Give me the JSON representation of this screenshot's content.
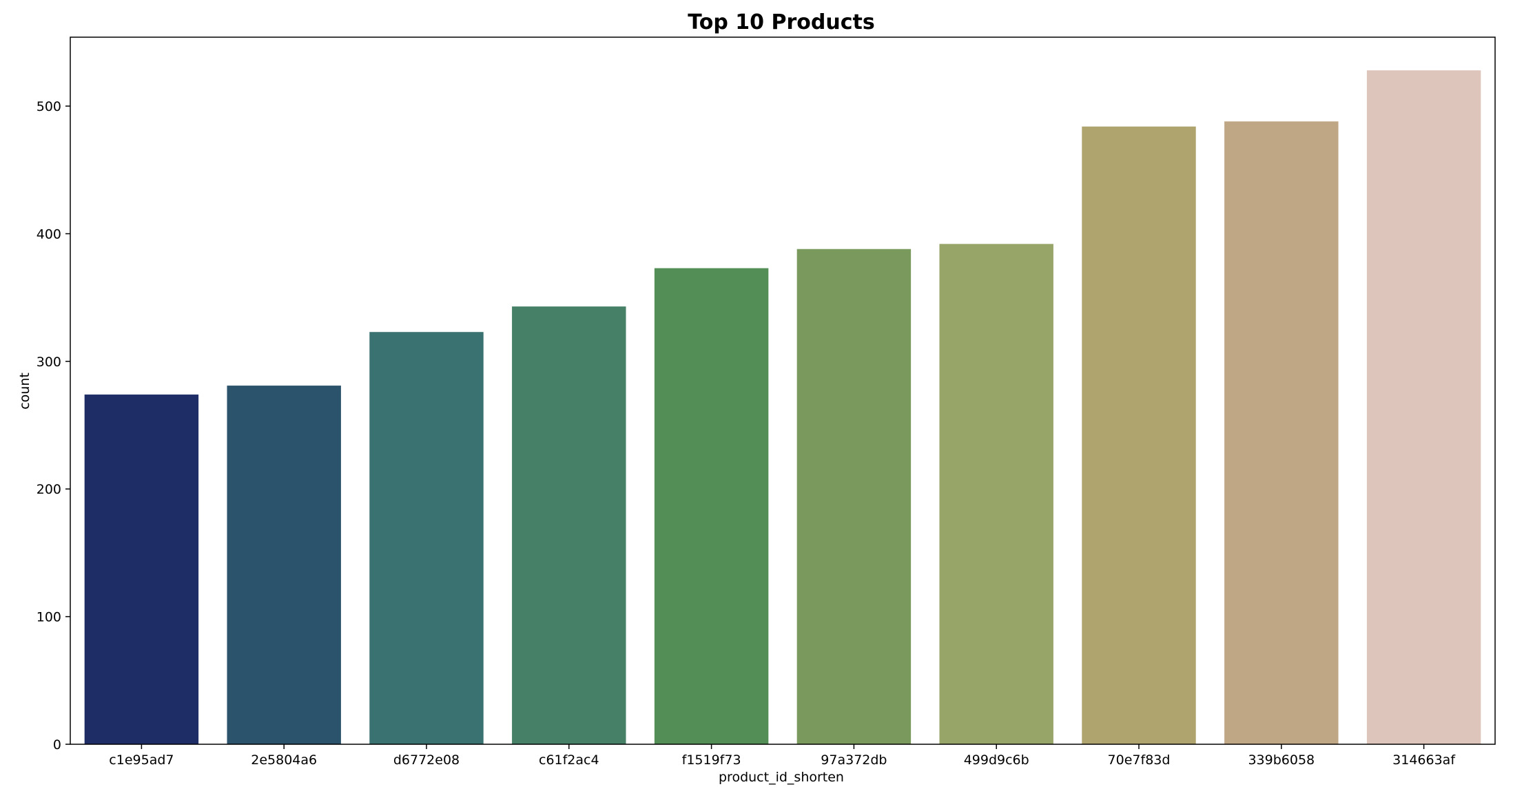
{
  "chart_data": {
    "type": "bar",
    "title": "Top 10 Products",
    "xlabel": "product_id_shorten",
    "ylabel": "count",
    "categories": [
      "c1e95ad7",
      "2e5804a6",
      "d6772e08",
      "c61f2ac4",
      "f1519f73",
      "97a372db",
      "499d9c6b",
      "70e7f83d",
      "339b6058",
      "314663af"
    ],
    "values": [
      274,
      281,
      323,
      343,
      373,
      388,
      392,
      484,
      488,
      528
    ],
    "colors": [
      "#1f2d67",
      "#2b536b",
      "#397270",
      "#468066",
      "#528e56",
      "#79995d",
      "#97a569",
      "#afa46e",
      "#bfa684",
      "#dec5bb"
    ],
    "yticks": [
      0,
      100,
      200,
      300,
      400,
      500
    ],
    "ylim": [
      0,
      554
    ],
    "grid": false,
    "legend": false
  }
}
